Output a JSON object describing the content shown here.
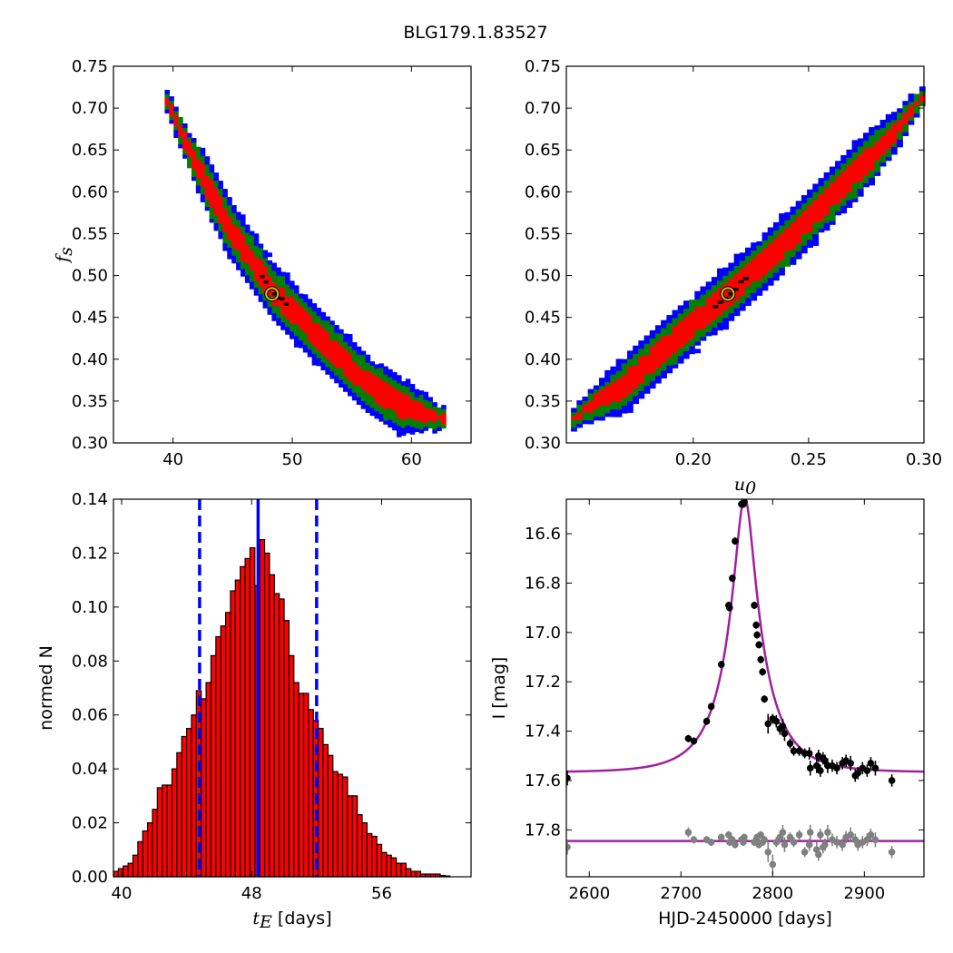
{
  "figure_title": "BLG179.1.83527",
  "colors": {
    "blue": "#0000ff",
    "green": "#008000",
    "red": "#ff0000",
    "black": "#000000",
    "gray": "#808080",
    "model": "#a020a0",
    "best_marker": "#c8c020"
  },
  "chart_data": [
    {
      "id": "tE-fs",
      "type": "heatmap",
      "title": "",
      "xlabel": "",
      "ylabel": "f_s",
      "xlim": [
        35,
        65
      ],
      "ylim": [
        0.3,
        0.75
      ],
      "xticks": [
        40,
        50,
        60
      ],
      "yticks": [
        0.3,
        0.35,
        0.4,
        0.45,
        0.5,
        0.55,
        0.6,
        0.65,
        0.7,
        0.75
      ],
      "xtick_labels": [
        "40",
        "50",
        "60"
      ],
      "ytick_labels": [
        "0.30",
        "0.35",
        "0.40",
        "0.45",
        "0.50",
        "0.55",
        "0.60",
        "0.65",
        "0.70",
        "0.75"
      ],
      "ridge": [
        [
          39.3,
          0.708
        ],
        [
          41.0,
          0.652
        ],
        [
          42.5,
          0.61
        ],
        [
          45.0,
          0.545
        ],
        [
          48.3,
          0.478
        ],
        [
          52.0,
          0.425
        ],
        [
          56.0,
          0.37
        ],
        [
          59.0,
          0.342
        ],
        [
          62.5,
          0.327
        ]
      ],
      "confidence_levels": [
        "blue",
        "green",
        "red",
        "black"
      ],
      "best_fit": {
        "x": 48.3,
        "y": 0.478
      }
    },
    {
      "id": "u0-fs",
      "type": "heatmap",
      "title": "",
      "xlabel": "u_0",
      "ylabel": "",
      "xlim": [
        0.145,
        0.3
      ],
      "ylim": [
        0.3,
        0.75
      ],
      "xticks": [
        0.2,
        0.25,
        0.3
      ],
      "yticks": [
        0.3,
        0.35,
        0.4,
        0.45,
        0.5,
        0.55,
        0.6,
        0.65,
        0.7,
        0.75
      ],
      "xtick_labels": [
        "0.20",
        "0.25",
        "0.30"
      ],
      "ytick_labels": [
        "0.30",
        "0.35",
        "0.40",
        "0.45",
        "0.50",
        "0.55",
        "0.60",
        "0.65",
        "0.70",
        "0.75"
      ],
      "ridge": [
        [
          0.147,
          0.328
        ],
        [
          0.17,
          0.37
        ],
        [
          0.19,
          0.42
        ],
        [
          0.215,
          0.478
        ],
        [
          0.24,
          0.54
        ],
        [
          0.265,
          0.61
        ],
        [
          0.285,
          0.665
        ],
        [
          0.298,
          0.712
        ]
      ],
      "confidence_levels": [
        "blue",
        "green",
        "red",
        "black"
      ],
      "best_fit": {
        "x": 0.215,
        "y": 0.478
      }
    },
    {
      "id": "tE-hist",
      "type": "bar",
      "title": "",
      "xlabel": "t_E [days]",
      "ylabel": "normed N",
      "xlim": [
        39.5,
        61.5
      ],
      "ylim": [
        0,
        0.14
      ],
      "xticks": [
        40,
        48,
        56
      ],
      "yticks": [
        0.0,
        0.02,
        0.04,
        0.06,
        0.08,
        0.1,
        0.12,
        0.14
      ],
      "xtick_labels": [
        "40",
        "48",
        "56"
      ],
      "ytick_labels": [
        "0.00",
        "0.02",
        "0.04",
        "0.06",
        "0.08",
        "0.10",
        "0.12",
        "0.14"
      ],
      "bin_start": 39.5,
      "bin_width": 0.3,
      "values": [
        0.002,
        0.003,
        0.004,
        0.005,
        0.008,
        0.013,
        0.017,
        0.02,
        0.025,
        0.033,
        0.034,
        0.034,
        0.04,
        0.046,
        0.052,
        0.055,
        0.06,
        0.069,
        0.066,
        0.072,
        0.082,
        0.089,
        0.093,
        0.098,
        0.106,
        0.11,
        0.115,
        0.118,
        0.122,
        0.108,
        0.125,
        0.12,
        0.112,
        0.105,
        0.103,
        0.095,
        0.082,
        0.072,
        0.068,
        0.068,
        0.062,
        0.058,
        0.055,
        0.049,
        0.045,
        0.039,
        0.038,
        0.037,
        0.03,
        0.03,
        0.023,
        0.02,
        0.016,
        0.015,
        0.012,
        0.009,
        0.008,
        0.007,
        0.005,
        0.005,
        0.003,
        0.002,
        0.002,
        0.001,
        0.001,
        0.001,
        0.001,
        0.0005,
        0.0003
      ],
      "median": 48.4,
      "lower": 44.8,
      "upper": 52.0
    },
    {
      "id": "lightcurve",
      "type": "scatter",
      "title": "",
      "xlabel": "HJD-2450000 [days]",
      "ylabel": "I [mag]",
      "xlim": [
        2575,
        2965
      ],
      "ylim": [
        17.99,
        16.46
      ],
      "xticks": [
        2600,
        2700,
        2800,
        2900
      ],
      "yticks": [
        16.6,
        16.8,
        17.0,
        17.2,
        17.4,
        17.6,
        17.8
      ],
      "xtick_labels": [
        "2600",
        "2700",
        "2800",
        "2900"
      ],
      "ytick_labels": [
        "16.6",
        "16.8",
        "17.0",
        "17.2",
        "17.4",
        "17.6",
        "17.8"
      ],
      "model": {
        "t0": 2769.5,
        "tE": 48.3,
        "u0": 0.215,
        "fs": 0.478,
        "I_base": 17.567
      },
      "residual_baseline": 17.845,
      "data": [
        [
          2576,
          17.59,
          0.03
        ],
        [
          2708,
          17.43,
          0.015
        ],
        [
          2714,
          17.44,
          0.015
        ],
        [
          2728,
          17.36,
          0.015
        ],
        [
          2733,
          17.3,
          0.015
        ],
        [
          2744,
          17.13,
          0.015
        ],
        [
          2752,
          16.89,
          0.015
        ],
        [
          2753,
          16.9,
          0.015
        ],
        [
          2756,
          16.78,
          0.015
        ],
        [
          2759,
          16.63,
          0.015
        ],
        [
          2766,
          16.48,
          0.015
        ],
        [
          2768,
          16.48,
          0.015
        ],
        [
          2769,
          16.47,
          0.015
        ],
        [
          2780,
          16.89,
          0.015
        ],
        [
          2782,
          16.97,
          0.015
        ],
        [
          2783,
          17.01,
          0.015
        ],
        [
          2785,
          17.05,
          0.015
        ],
        [
          2787,
          17.11,
          0.015
        ],
        [
          2789,
          17.16,
          0.015
        ],
        [
          2791,
          17.27,
          0.015
        ],
        [
          2795,
          17.37,
          0.04
        ],
        [
          2800,
          17.35,
          0.02
        ],
        [
          2804,
          17.36,
          0.025
        ],
        [
          2808,
          17.39,
          0.025
        ],
        [
          2811,
          17.38,
          0.03
        ],
        [
          2813,
          17.41,
          0.03
        ],
        [
          2819,
          17.45,
          0.02
        ],
        [
          2823,
          17.48,
          0.02
        ],
        [
          2829,
          17.48,
          0.02
        ],
        [
          2835,
          17.49,
          0.02
        ],
        [
          2840,
          17.49,
          0.025
        ],
        [
          2841,
          17.55,
          0.03
        ],
        [
          2848,
          17.54,
          0.03
        ],
        [
          2850,
          17.5,
          0.025
        ],
        [
          2852,
          17.56,
          0.025
        ],
        [
          2855,
          17.51,
          0.025
        ],
        [
          2857,
          17.52,
          0.025
        ],
        [
          2860,
          17.54,
          0.03
        ],
        [
          2865,
          17.54,
          0.025
        ],
        [
          2870,
          17.55,
          0.025
        ],
        [
          2876,
          17.53,
          0.025
        ],
        [
          2880,
          17.52,
          0.025
        ],
        [
          2885,
          17.53,
          0.03
        ],
        [
          2890,
          17.58,
          0.025
        ],
        [
          2893,
          17.57,
          0.025
        ],
        [
          2898,
          17.55,
          0.025
        ],
        [
          2903,
          17.56,
          0.025
        ],
        [
          2907,
          17.53,
          0.025
        ],
        [
          2912,
          17.55,
          0.03
        ],
        [
          2930,
          17.6,
          0.025
        ]
      ],
      "residuals": [
        [
          2576,
          17.87,
          0.03
        ],
        [
          2708,
          17.81,
          0.02
        ],
        [
          2714,
          17.84,
          0.015
        ],
        [
          2728,
          17.84,
          0.015
        ],
        [
          2733,
          17.85,
          0.015
        ],
        [
          2744,
          17.83,
          0.015
        ],
        [
          2752,
          17.82,
          0.015
        ],
        [
          2753,
          17.85,
          0.015
        ],
        [
          2756,
          17.84,
          0.015
        ],
        [
          2759,
          17.86,
          0.015
        ],
        [
          2766,
          17.84,
          0.015
        ],
        [
          2768,
          17.85,
          0.015
        ],
        [
          2769,
          17.83,
          0.015
        ],
        [
          2780,
          17.85,
          0.015
        ],
        [
          2782,
          17.84,
          0.015
        ],
        [
          2783,
          17.83,
          0.015
        ],
        [
          2785,
          17.86,
          0.015
        ],
        [
          2787,
          17.82,
          0.015
        ],
        [
          2789,
          17.85,
          0.015
        ],
        [
          2791,
          17.84,
          0.015
        ],
        [
          2795,
          17.89,
          0.04
        ],
        [
          2800,
          17.94,
          0.04
        ],
        [
          2804,
          17.85,
          0.02
        ],
        [
          2808,
          17.83,
          0.025
        ],
        [
          2811,
          17.81,
          0.03
        ],
        [
          2813,
          17.86,
          0.03
        ],
        [
          2819,
          17.83,
          0.02
        ],
        [
          2823,
          17.85,
          0.02
        ],
        [
          2829,
          17.82,
          0.02
        ],
        [
          2835,
          17.89,
          0.02
        ],
        [
          2840,
          17.86,
          0.025
        ],
        [
          2841,
          17.81,
          0.03
        ],
        [
          2848,
          17.88,
          0.03
        ],
        [
          2850,
          17.9,
          0.025
        ],
        [
          2852,
          17.82,
          0.025
        ],
        [
          2855,
          17.87,
          0.025
        ],
        [
          2857,
          17.86,
          0.025
        ],
        [
          2860,
          17.81,
          0.03
        ],
        [
          2865,
          17.84,
          0.025
        ],
        [
          2870,
          17.85,
          0.025
        ],
        [
          2876,
          17.86,
          0.025
        ],
        [
          2880,
          17.83,
          0.025
        ],
        [
          2885,
          17.82,
          0.03
        ],
        [
          2890,
          17.84,
          0.025
        ],
        [
          2893,
          17.86,
          0.025
        ],
        [
          2898,
          17.85,
          0.025
        ],
        [
          2903,
          17.84,
          0.025
        ],
        [
          2907,
          17.82,
          0.025
        ],
        [
          2912,
          17.84,
          0.03
        ],
        [
          2930,
          17.89,
          0.025
        ]
      ]
    }
  ]
}
